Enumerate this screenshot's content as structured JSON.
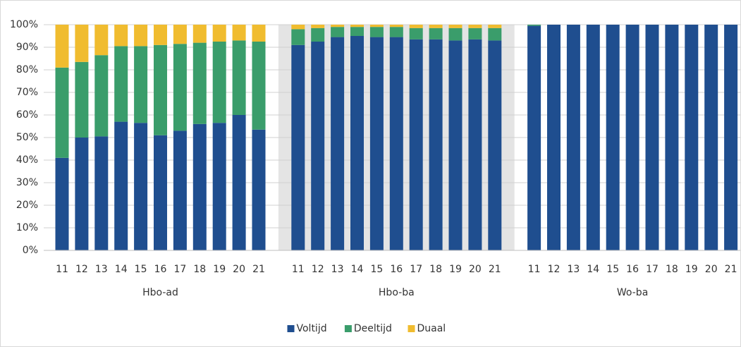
{
  "chart_data": {
    "type": "bar",
    "stacked": true,
    "groups": [
      "Hbo-ad",
      "Hbo-ba",
      "Wo-ba"
    ],
    "categories": [
      "11",
      "12",
      "13",
      "14",
      "15",
      "16",
      "17",
      "18",
      "19",
      "20",
      "21"
    ],
    "shaded_group": 1,
    "series": [
      {
        "name": "Voltijd",
        "color": "#1f4e8f",
        "values": [
          [
            41,
            50,
            50.5,
            57,
            56.5,
            51,
            53,
            56,
            56.5,
            60,
            53.5
          ],
          [
            91,
            92.5,
            94.5,
            95,
            94.5,
            94.5,
            93.5,
            93.5,
            93,
            93.5,
            93
          ],
          [
            99.5,
            100,
            100,
            100,
            100,
            100,
            100,
            100,
            100,
            100,
            100
          ]
        ]
      },
      {
        "name": "Deeltijd",
        "color": "#3a9d6b",
        "values": [
          [
            40,
            33.5,
            36,
            33.5,
            34,
            40,
            38.5,
            36,
            36,
            33,
            39
          ],
          [
            7,
            6,
            4.5,
            4,
            4.5,
            4.5,
            5,
            5,
            5.5,
            5,
            5.5
          ],
          [
            0.5,
            0,
            0,
            0,
            0,
            0,
            0,
            0,
            0,
            0,
            0
          ]
        ]
      },
      {
        "name": "Duaal",
        "color": "#f0bc2f",
        "values": [
          [
            19,
            16.5,
            13.5,
            9.5,
            9.5,
            9,
            8.5,
            8,
            7.5,
            7,
            7.5
          ],
          [
            2,
            1.5,
            1,
            1,
            1,
            1,
            1.5,
            1.5,
            1.5,
            1.5,
            1.5
          ],
          [
            0,
            0,
            0,
            0,
            0,
            0,
            0,
            0,
            0,
            0,
            0
          ]
        ]
      }
    ],
    "ylim": [
      0,
      100
    ],
    "yticks": [
      {
        "value": 0,
        "label": "0%"
      },
      {
        "value": 10,
        "label": "10%"
      },
      {
        "value": 20,
        "label": "20%"
      },
      {
        "value": 30,
        "label": "30%"
      },
      {
        "value": 40,
        "label": "40%"
      },
      {
        "value": 50,
        "label": "50%"
      },
      {
        "value": 60,
        "label": "60%"
      },
      {
        "value": 70,
        "label": "70%"
      },
      {
        "value": 80,
        "label": "80%"
      },
      {
        "value": 90,
        "label": "90%"
      },
      {
        "value": 100,
        "label": "100%"
      }
    ],
    "grid": true,
    "legend": "bottom"
  }
}
